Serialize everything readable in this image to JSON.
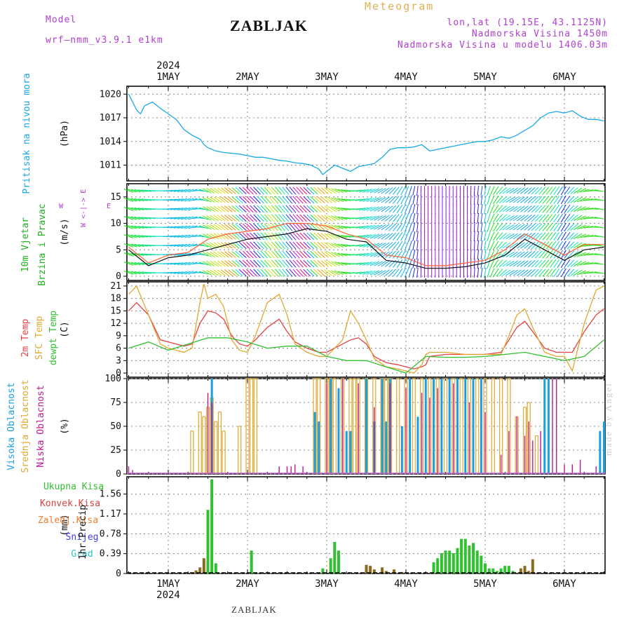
{
  "header": {
    "model_label": "Model",
    "model_name": "wrf—nmm_v3.9.1  e1km",
    "title": "ZABLJAK",
    "meteogram": "Meteogram",
    "lonlat": "lon,lat (19.15E, 43.1125N)",
    "elev": "Nadmorska Visina 1450m",
    "elev_model": "Nadmorska Visina u modelu 1406.03m",
    "year": "2024",
    "footer_title": "ZABLJAK",
    "watermark": "made by Angel"
  },
  "colors": {
    "pressure": "#1aa8e8",
    "temp2m": "#e84040",
    "sfc": "#e0a830",
    "dew": "#30c030",
    "cloud_high": "#1aa0e0",
    "cloud_mid": "#e0a830",
    "cloud_low": "#c01890",
    "precip": "#30c030",
    "precip_conv": "#e04040",
    "precip_dark": "#8a6a20",
    "snow": "#4040e0",
    "grad": "#30c0c0"
  },
  "chart_data": [
    {
      "type": "line",
      "id": "pressure",
      "ylabel": "Pritisak na nivou mora",
      "units": "(hPa)",
      "x_day_ticks": [
        "1MAY",
        "2MAY",
        "3MAY",
        "4MAY",
        "5MAY",
        "6MAY"
      ],
      "ylim": [
        1009,
        1021
      ],
      "yticks": [
        1011,
        1014,
        1017,
        1020
      ],
      "series": [
        {
          "x": [
            0.5,
            0.6,
            0.65,
            0.7,
            0.8,
            0.9,
            1.0,
            1.1,
            1.2,
            1.3,
            1.4,
            1.45,
            1.5,
            1.6,
            1.7,
            1.8,
            1.9,
            2.0,
            2.1,
            2.2,
            2.3,
            2.4,
            2.5,
            2.6,
            2.7,
            2.8,
            2.9,
            2.95,
            3.0,
            3.1,
            3.2,
            3.3,
            3.4,
            3.5,
            3.6,
            3.7,
            3.8,
            3.9,
            4.0,
            4.1,
            4.2,
            4.3,
            4.4,
            4.5,
            4.6,
            4.7,
            4.8,
            4.9,
            5.0,
            5.1,
            5.2,
            5.3,
            5.4,
            5.5,
            5.6,
            5.7,
            5.8,
            5.9,
            6.0,
            6.1,
            6.2,
            6.3,
            6.4,
            6.5
          ],
          "values": [
            1020,
            1018,
            1017.5,
            1018.5,
            1019,
            1018.2,
            1017.5,
            1016.8,
            1015.5,
            1014.8,
            1014.3,
            1013.6,
            1013.2,
            1012.8,
            1012.6,
            1012.5,
            1012.4,
            1012.2,
            1012.0,
            1012.0,
            1011.8,
            1011.6,
            1011.5,
            1011.3,
            1011.2,
            1011.0,
            1010.5,
            1009.8,
            1010.2,
            1011.0,
            1010.6,
            1010.2,
            1010.8,
            1011.0,
            1011.2,
            1012.0,
            1013.0,
            1013.2,
            1013.2,
            1013.3,
            1013.6,
            1012.8,
            1013.0,
            1013.2,
            1013.4,
            1013.6,
            1013.8,
            1014.0,
            1014.0,
            1014.2,
            1014.6,
            1014.4,
            1014.8,
            1015.4,
            1016.0,
            1017.0,
            1017.6,
            1017.8,
            1017.6,
            1017.9,
            1017.2,
            1016.8,
            1016.8,
            1016.6
          ]
        }
      ]
    },
    {
      "type": "line",
      "id": "wind",
      "ylabel": "10m Vjetar Brzina i Pravac",
      "units": "(m/s)",
      "compass": "W <-|-> E",
      "ylim": [
        -0.8,
        17.5
      ],
      "yticks": [
        0,
        5,
        10,
        15
      ],
      "series": [
        {
          "name": "speed",
          "x": [
            0.5,
            0.75,
            1.0,
            1.25,
            1.5,
            1.75,
            2.0,
            2.25,
            2.5,
            2.75,
            3.0,
            3.25,
            3.5,
            3.75,
            4.0,
            4.25,
            4.5,
            4.75,
            5.0,
            5.25,
            5.5,
            5.75,
            6.0,
            6.25,
            6.5
          ],
          "values": [
            5,
            2,
            3.5,
            4,
            5,
            6,
            7,
            7.5,
            8,
            9,
            8.5,
            7,
            6.5,
            3,
            2.5,
            1.5,
            1.5,
            1.8,
            2.5,
            4,
            7,
            5,
            3,
            5,
            5.5
          ]
        },
        {
          "name": "gust",
          "x": [
            0.5,
            0.75,
            1.0,
            1.25,
            1.5,
            1.75,
            2.0,
            2.25,
            2.5,
            2.75,
            3.0,
            3.25,
            3.5,
            3.75,
            4.0,
            4.25,
            4.5,
            4.75,
            5.0,
            5.25,
            5.5,
            5.75,
            6.0,
            6.25,
            6.5
          ],
          "values": [
            5.5,
            2.5,
            4,
            4.5,
            7,
            8,
            8.5,
            9,
            10,
            10,
            9.5,
            8,
            7,
            4,
            3.5,
            2,
            2,
            2.5,
            3,
            5,
            8,
            6,
            4,
            6,
            6
          ]
        }
      ]
    },
    {
      "type": "line",
      "id": "temperature",
      "ylabel": "2m Temp / SFC Temp / dewpt Temp",
      "units": "(C)",
      "ylim": [
        -1,
        22
      ],
      "yticks": [
        0,
        3,
        6,
        9,
        12,
        15,
        18,
        21
      ],
      "series": [
        {
          "name": "2m Temp",
          "x": [
            0.5,
            0.6,
            0.75,
            0.9,
            1.0,
            1.1,
            1.2,
            1.3,
            1.4,
            1.5,
            1.6,
            1.7,
            1.8,
            1.9,
            2.0,
            2.1,
            2.25,
            2.4,
            2.5,
            2.6,
            2.75,
            2.9,
            3.0,
            3.1,
            3.2,
            3.3,
            3.4,
            3.5,
            3.6,
            3.75,
            3.9,
            4.0,
            4.1,
            4.2,
            4.25,
            4.3,
            4.5,
            4.75,
            5.0,
            5.2,
            5.3,
            5.4,
            5.5,
            5.6,
            5.75,
            5.9,
            6.0,
            6.1,
            6.25,
            6.4,
            6.5
          ],
          "values": [
            15,
            17,
            14,
            8,
            7.5,
            7,
            6.5,
            7,
            12,
            15,
            14.5,
            13,
            9,
            7,
            6.5,
            8,
            11,
            13,
            10,
            7.5,
            6,
            5,
            5,
            6,
            7,
            8,
            8.5,
            7,
            4,
            2.5,
            2,
            1.5,
            1,
            1.5,
            2,
            4,
            4.5,
            4.5,
            4.5,
            5,
            8,
            11,
            12.5,
            10,
            6,
            5,
            5,
            5,
            10,
            14,
            15.5
          ]
        },
        {
          "name": "SFC Temp",
          "x": [
            0.5,
            0.6,
            0.75,
            0.9,
            1.0,
            1.1,
            1.2,
            1.3,
            1.4,
            1.45,
            1.5,
            1.6,
            1.7,
            1.8,
            1.9,
            2.0,
            2.1,
            2.25,
            2.4,
            2.5,
            2.6,
            2.75,
            2.9,
            3.0,
            3.1,
            3.2,
            3.3,
            3.4,
            3.5,
            3.6,
            3.75,
            3.9,
            4.0,
            4.1,
            4.2,
            4.25,
            4.3,
            4.5,
            4.75,
            5.0,
            5.2,
            5.3,
            5.4,
            5.5,
            5.6,
            5.75,
            5.9,
            6.0,
            6.1,
            6.25,
            6.4,
            6.5
          ],
          "values": [
            19,
            21,
            14,
            7,
            6,
            5.5,
            5,
            6,
            17,
            21.5,
            18,
            19,
            16,
            8,
            5.5,
            5,
            9,
            17,
            19,
            14,
            7,
            5,
            4,
            4,
            6,
            8,
            15,
            12,
            8,
            3.5,
            1.5,
            1,
            0.5,
            0,
            2,
            4.5,
            5,
            5,
            4.5,
            4.5,
            4.5,
            9,
            14,
            15.5,
            11,
            5,
            4,
            4,
            0.5,
            12,
            20,
            21
          ]
        },
        {
          "name": "dewpt Temp",
          "x": [
            0.5,
            0.75,
            1.0,
            1.25,
            1.5,
            1.75,
            2.0,
            2.25,
            2.5,
            2.75,
            3.0,
            3.25,
            3.5,
            3.75,
            4.0,
            4.25,
            4.5,
            4.75,
            5.0,
            5.25,
            5.5,
            5.75,
            6.0,
            6.25,
            6.5
          ],
          "values": [
            6,
            7.5,
            5.5,
            7,
            8.5,
            8.5,
            7.5,
            6,
            6.5,
            6.5,
            4,
            3,
            3,
            1.5,
            0,
            4,
            3.8,
            3.8,
            4,
            4.5,
            5,
            4,
            3,
            4,
            8
          ]
        }
      ]
    },
    {
      "type": "bar",
      "id": "clouds",
      "ylabel": "Visoka Oblacnost / Srednja Oblacnost / Niska Oblacnost",
      "units": "(%)",
      "ylim": [
        0,
        100
      ],
      "yticks": [
        0,
        25,
        50,
        75,
        100
      ],
      "series": [
        {
          "name": "Srednja Oblacnost",
          "x": [
            1.3,
            1.4,
            1.45,
            1.5,
            1.55,
            1.6,
            1.65,
            1.7,
            1.9,
            2.0,
            2.05,
            2.1,
            2.85,
            2.9,
            3.0,
            3.05,
            3.1,
            3.2,
            3.3,
            3.35,
            3.4,
            3.5,
            3.6,
            3.7,
            3.75,
            3.8,
            3.9,
            4.0,
            4.1,
            4.2,
            4.3,
            4.4,
            4.5,
            4.6,
            4.7,
            4.8,
            4.9,
            5.0,
            5.1,
            5.2,
            5.3,
            5.4,
            5.5,
            5.55,
            5.65
          ],
          "values": [
            45,
            65,
            60,
            70,
            80,
            55,
            65,
            45,
            50,
            100,
            100,
            100,
            100,
            100,
            100,
            100,
            100,
            100,
            100,
            100,
            100,
            100,
            100,
            100,
            100,
            100,
            100,
            100,
            100,
            100,
            100,
            100,
            100,
            100,
            100,
            100,
            100,
            100,
            100,
            100,
            100,
            60,
            70,
            75,
            40
          ]
        },
        {
          "name": "Visoka Oblacnost",
          "x": [
            1.55,
            2.85,
            2.9,
            3.05,
            3.15,
            3.25,
            3.3,
            3.5,
            3.6,
            3.7,
            3.75,
            3.8,
            3.95,
            4.05,
            4.15,
            4.25,
            4.35,
            4.45,
            4.55,
            4.65,
            4.75,
            4.85,
            4.95,
            5.75,
            5.8,
            6.45,
            6.5
          ],
          "values": [
            100,
            65,
            55,
            100,
            90,
            45,
            45,
            100,
            55,
            100,
            55,
            100,
            50,
            100,
            60,
            100,
            100,
            100,
            100,
            100,
            100,
            100,
            100,
            100,
            100,
            45,
            55
          ]
        },
        {
          "name": "Niska Oblacnost",
          "x": [
            0.5,
            0.55,
            1.5,
            1.55,
            2.4,
            2.5,
            2.55,
            2.6,
            2.7,
            3.0,
            3.2,
            3.4,
            3.6,
            3.8,
            4.0,
            4.2,
            4.3,
            4.4,
            4.6,
            4.8,
            5.0,
            5.2,
            5.3,
            5.4,
            5.5,
            5.55,
            5.6,
            5.7,
            5.85,
            5.9,
            6.0,
            6.1,
            6.2,
            6.4
          ],
          "values": [
            8,
            4,
            85,
            75,
            8,
            8,
            8,
            10,
            8,
            95,
            100,
            95,
            70,
            95,
            90,
            85,
            80,
            90,
            95,
            75,
            65,
            20,
            45,
            60,
            40,
            55,
            35,
            45,
            100,
            100,
            10,
            10,
            15,
            8
          ]
        }
      ]
    },
    {
      "type": "bar",
      "id": "precip",
      "ylabel": "1hr Precip",
      "units": "(mm)",
      "legend": [
        "Ukupna Kisa",
        "Konvek.Kisa",
        "Zaledj.Kisa",
        "Snijeg",
        "Grad"
      ],
      "ylim": [
        0,
        1.9
      ],
      "yticks": [
        0,
        0.39,
        0.78,
        1.17,
        1.56
      ],
      "series": [
        {
          "name": "Ukupna Kisa",
          "x": [
            1.35,
            1.4,
            1.45,
            1.5,
            1.55,
            1.6,
            2.05,
            2.95,
            3.05,
            3.1,
            3.15,
            3.5,
            3.55,
            3.6,
            3.7,
            3.75,
            3.85,
            3.95,
            4.35,
            4.4,
            4.45,
            4.5,
            4.55,
            4.6,
            4.65,
            4.7,
            4.75,
            4.8,
            4.85,
            4.9,
            4.95,
            5.0,
            5.05,
            5.1,
            5.15,
            5.2,
            5.25,
            5.3,
            5.35,
            5.45,
            5.5,
            5.55,
            5.6
          ],
          "values": [
            0.06,
            0.12,
            0.3,
            1.25,
            1.85,
            0.2,
            0.45,
            0.1,
            0.3,
            0.62,
            0.45,
            0.17,
            0.15,
            0.08,
            0.12,
            0.05,
            0.08,
            0.03,
            0.22,
            0.3,
            0.4,
            0.45,
            0.45,
            0.4,
            0.5,
            0.68,
            0.68,
            0.55,
            0.6,
            0.45,
            0.35,
            0.2,
            0.1,
            0.1,
            0.05,
            0.1,
            0.15,
            0.15,
            0.05,
            0.1,
            0.15,
            0.05,
            0.28
          ]
        }
      ]
    }
  ]
}
